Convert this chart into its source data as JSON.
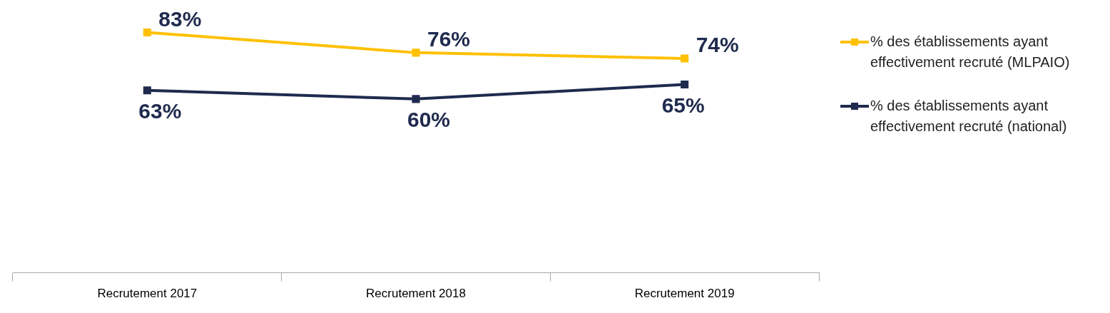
{
  "chart_data": {
    "type": "line",
    "categories": [
      "Recrutement 2017",
      "Recrutement 2018",
      "Recrutement 2019"
    ],
    "series": [
      {
        "name": "% des établissements ayant effectivement recruté (MLPAIO)",
        "color": "#ffc000",
        "values": [
          83,
          76,
          74
        ],
        "value_labels": [
          "83%",
          "76%",
          "74%"
        ]
      },
      {
        "name": "% des établissements ayant effectivement recruté (national)",
        "color": "#1f2a4e",
        "values": [
          63,
          60,
          65
        ],
        "value_labels": [
          "63%",
          "60%",
          "65%"
        ]
      }
    ],
    "tick_labels": "x",
    "grid": false,
    "legend": "right",
    "marker": "square",
    "line_style": "solid"
  }
}
